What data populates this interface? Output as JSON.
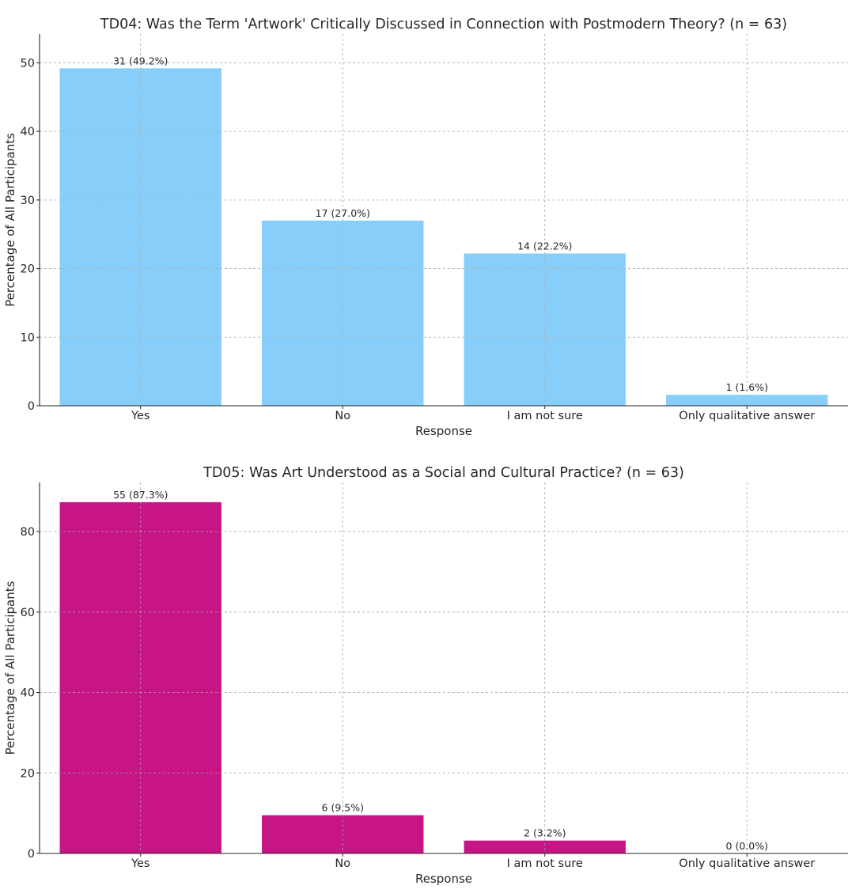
{
  "chart_data": [
    {
      "type": "bar",
      "title": "TD04: Was the Term 'Artwork' Critically Discussed in Connection with Postmodern Theory? (n = 63)",
      "xlabel": "Response",
      "ylabel": "Percentage of All Participants",
      "categories": [
        "Yes",
        "No",
        "I am not sure",
        "Only qualitative answer"
      ],
      "values": [
        49.2,
        27.0,
        22.2,
        1.6
      ],
      "data_labels": [
        "31 (49.2%)",
        "17 (27.0%)",
        "14 (22.2%)",
        "1 (1.6%)"
      ],
      "ylim": [
        0,
        54.2
      ],
      "yticks": [
        0,
        10,
        20,
        30,
        40,
        50
      ],
      "grid": true,
      "color": "#87CEFA"
    },
    {
      "type": "bar",
      "title": "TD05: Was Art Understood as a Social and Cultural Practice? (n = 63)",
      "xlabel": "Response",
      "ylabel": "Percentage of All Participants",
      "categories": [
        "Yes",
        "No",
        "I am not sure",
        "Only qualitative answer"
      ],
      "values": [
        87.3,
        9.5,
        3.2,
        0.0
      ],
      "data_labels": [
        "55 (87.3%)",
        "6 (9.5%)",
        "2 (3.2%)",
        "0 (0.0%)"
      ],
      "ylim": [
        0,
        92.2
      ],
      "yticks": [
        0,
        20,
        40,
        60,
        80
      ],
      "grid": true,
      "color": "#C71585"
    }
  ]
}
